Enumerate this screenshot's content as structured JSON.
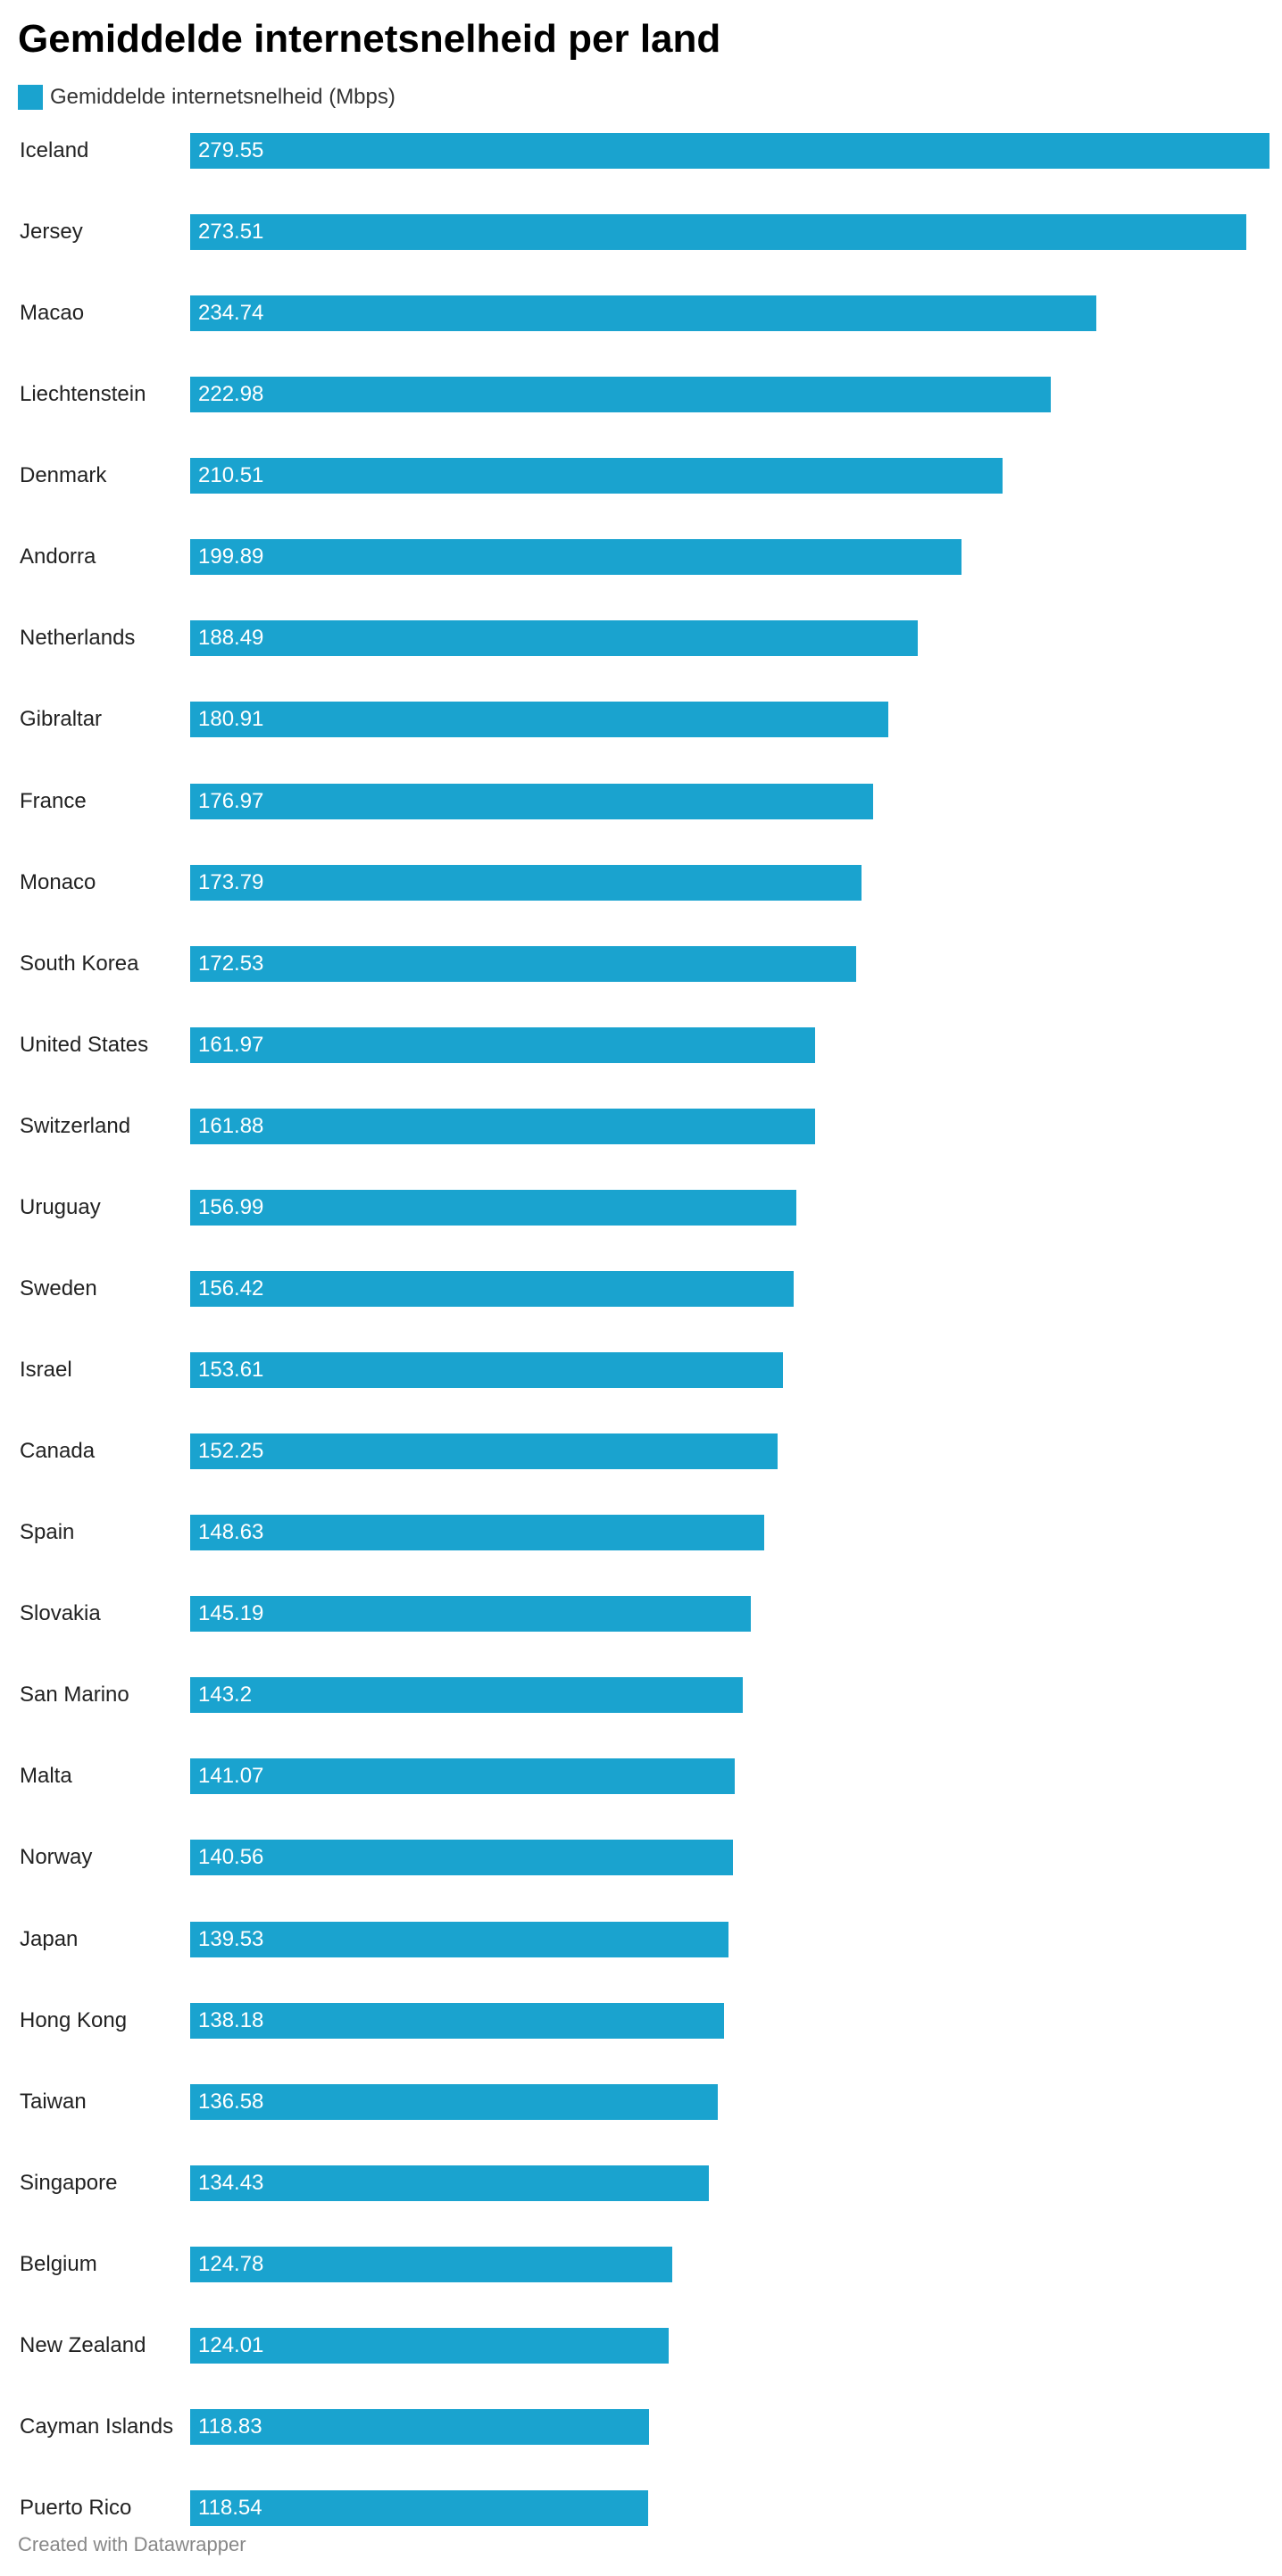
{
  "chart_data": {
    "type": "bar",
    "orientation": "horizontal",
    "title": "Gemiddelde internetsnelheid per land",
    "legend": "top-left",
    "grid": false,
    "xlim": [
      0,
      279.55
    ],
    "series": [
      {
        "name": "Gemiddelde internetsnelheid (Mbps)",
        "color": "#1aa3cf",
        "values": [
          279.55,
          273.51,
          234.74,
          222.98,
          210.51,
          199.89,
          188.49,
          180.91,
          176.97,
          173.79,
          172.53,
          161.97,
          161.88,
          156.99,
          156.42,
          153.61,
          152.25,
          148.63,
          145.19,
          143.2,
          141.07,
          140.56,
          139.53,
          138.18,
          136.58,
          134.43,
          124.78,
          124.01,
          118.83,
          118.54
        ],
        "labels": [
          "279.55",
          "273.51",
          "234.74",
          "222.98",
          "210.51",
          "199.89",
          "188.49",
          "180.91",
          "176.97",
          "173.79",
          "172.53",
          "161.97",
          "161.88",
          "156.99",
          "156.42",
          "153.61",
          "152.25",
          "148.63",
          "145.19",
          "143.2",
          "141.07",
          "140.56",
          "139.53",
          "138.18",
          "136.58",
          "134.43",
          "124.78",
          "124.01",
          "118.83",
          "118.54"
        ]
      }
    ],
    "categories": [
      "Iceland",
      "Jersey",
      "Macao",
      "Liechtenstein",
      "Denmark",
      "Andorra",
      "Netherlands",
      "Gibraltar",
      "France",
      "Monaco",
      "South Korea",
      "United States",
      "Switzerland",
      "Uruguay",
      "Sweden",
      "Israel",
      "Canada",
      "Spain",
      "Slovakia",
      "San Marino",
      "Malta",
      "Norway",
      "Japan",
      "Hong Kong",
      "Taiwan",
      "Singapore",
      "Belgium",
      "New Zealand",
      "Cayman Islands",
      "Puerto Rico"
    ]
  },
  "footer": {
    "credit": "Created with Datawrapper"
  }
}
